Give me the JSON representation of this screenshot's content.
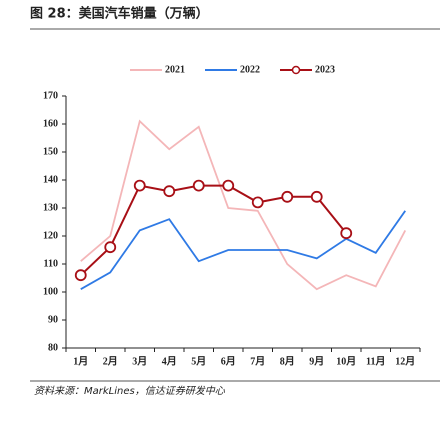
{
  "chart_data": {
    "type": "line",
    "title": "图 28：美国汽车销量（万辆）",
    "source": "资料来源：MarkLines，信达证券研发中心",
    "categories": [
      "1月",
      "2月",
      "3月",
      "4月",
      "5月",
      "6月",
      "7月",
      "8月",
      "9月",
      "10月",
      "11月",
      "12月"
    ],
    "series": [
      {
        "name": "2021",
        "color": "#f4b6b8",
        "values": [
          111,
          120,
          161,
          151,
          159,
          130,
          129,
          110,
          101,
          106,
          102,
          122
        ]
      },
      {
        "name": "2022",
        "color": "#2f7ae5",
        "values": [
          101,
          107,
          122,
          126,
          111,
          115,
          115,
          115,
          112,
          119,
          114,
          129
        ]
      },
      {
        "name": "2023",
        "color": "#a80f16",
        "markers": true,
        "values": [
          106,
          116,
          138,
          136,
          138,
          138,
          132,
          134,
          134,
          121,
          null,
          null
        ]
      }
    ],
    "ylim": [
      80,
      170
    ],
    "yticks": [
      80,
      90,
      100,
      110,
      120,
      130,
      140,
      150,
      160,
      170
    ],
    "legend": "top"
  }
}
